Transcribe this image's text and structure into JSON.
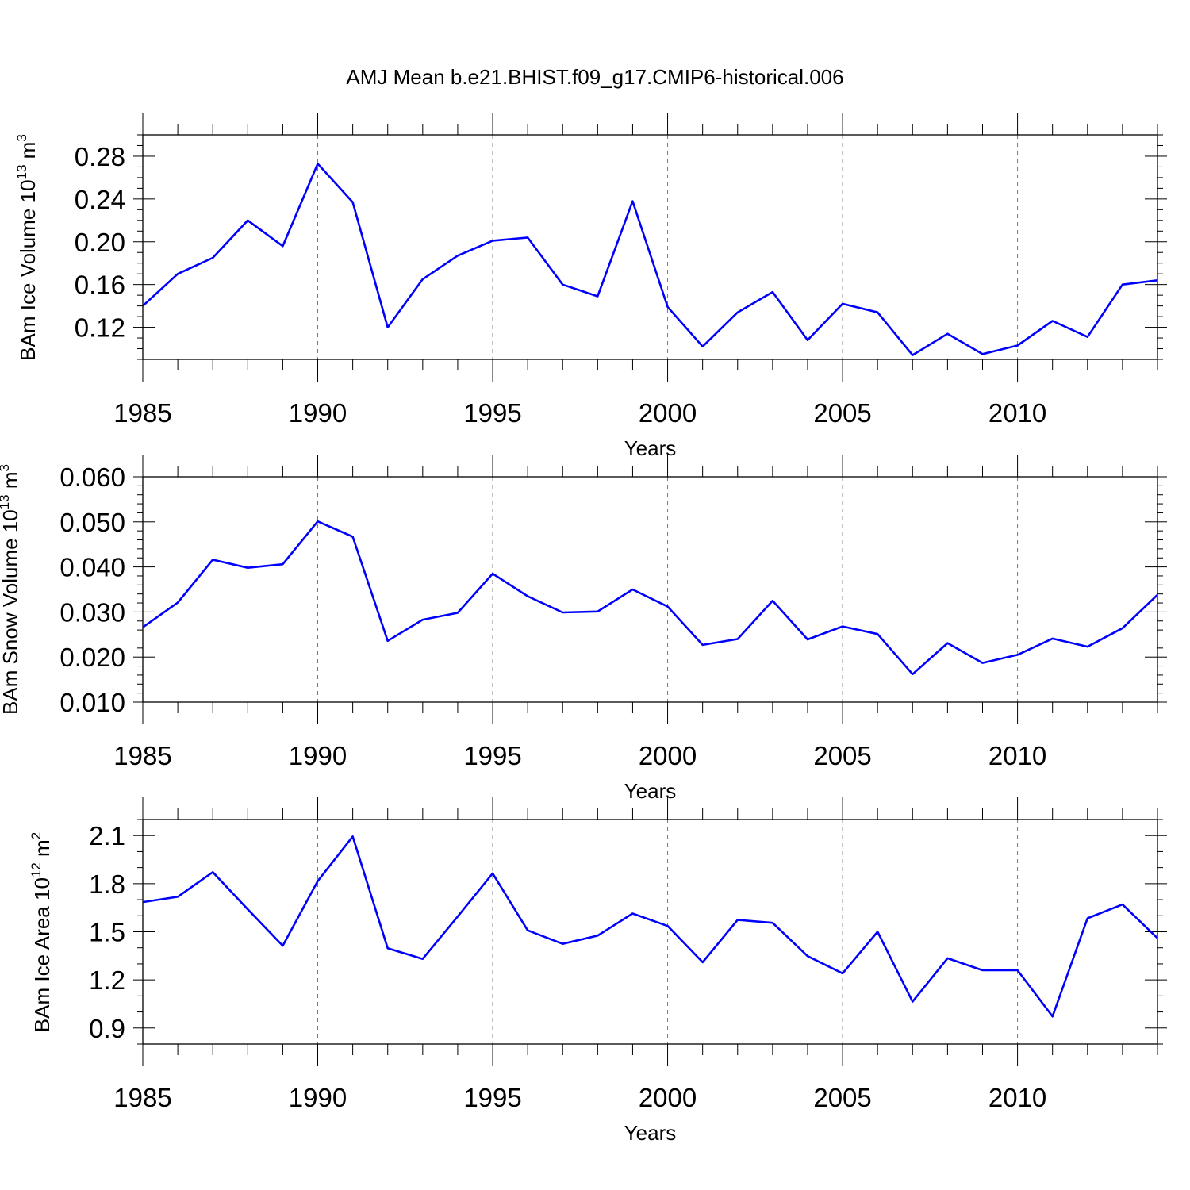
{
  "title": "AMJ Mean b.e21.BHIST.f09_g17.CMIP6-historical.006",
  "colors": {
    "line": "#0000ff",
    "axis": "#000000",
    "grid": "#777777"
  },
  "chart_data": [
    {
      "type": "line",
      "ylabel": {
        "main": "BAm Ice Volume 10",
        "exp": "13",
        "unit": " m",
        "unit_exp": "3"
      },
      "xlabel": "Years",
      "xlim": [
        1985,
        2014
      ],
      "ylim": [
        0.09,
        0.3
      ],
      "yticks": [
        0.12,
        0.16,
        0.2,
        0.24,
        0.28
      ],
      "ytick_labels": [
        "0.12",
        "0.16",
        "0.20",
        "0.24",
        "0.28"
      ],
      "yminor_step": 0.01,
      "xticks": [
        1985,
        1990,
        1995,
        2000,
        2005,
        2010
      ],
      "xtick_labels": [
        "1985",
        "1990",
        "1995",
        "2000",
        "2005",
        "2010"
      ],
      "grid": "dashed vertical at major x ticks",
      "x": [
        1985,
        1986,
        1987,
        1988,
        1989,
        1990,
        1991,
        1992,
        1993,
        1994,
        1995,
        1996,
        1997,
        1998,
        1999,
        2000,
        2001,
        2002,
        2003,
        2004,
        2005,
        2006,
        2007,
        2008,
        2009,
        2010,
        2011,
        2012,
        2013,
        2014
      ],
      "values": [
        0.14,
        0.17,
        0.185,
        0.22,
        0.196,
        0.273,
        0.237,
        0.12,
        0.165,
        0.187,
        0.201,
        0.204,
        0.16,
        0.149,
        0.238,
        0.139,
        0.102,
        0.134,
        0.153,
        0.108,
        0.142,
        0.134,
        0.094,
        0.114,
        0.095,
        0.103,
        0.126,
        0.111,
        0.16,
        0.164
      ]
    },
    {
      "type": "line",
      "ylabel": {
        "main": "BAm Snow Volume 10",
        "exp": "13",
        "unit": " m",
        "unit_exp": "3"
      },
      "xlabel": "Years",
      "xlim": [
        1985,
        2014
      ],
      "ylim": [
        0.01,
        0.06
      ],
      "yticks": [
        0.01,
        0.02,
        0.03,
        0.04,
        0.05,
        0.06
      ],
      "ytick_labels": [
        "0.010",
        "0.020",
        "0.030",
        "0.040",
        "0.050",
        "0.060"
      ],
      "yminor_step": 0.002,
      "xticks": [
        1985,
        1990,
        1995,
        2000,
        2005,
        2010
      ],
      "xtick_labels": [
        "1985",
        "1990",
        "1995",
        "2000",
        "2005",
        "2010"
      ],
      "grid": "dashed vertical at major x ticks",
      "x": [
        1985,
        1986,
        1987,
        1988,
        1989,
        1990,
        1991,
        1992,
        1993,
        1994,
        1995,
        1996,
        1997,
        1998,
        1999,
        2000,
        2001,
        2002,
        2003,
        2004,
        2005,
        2006,
        2007,
        2008,
        2009,
        2010,
        2011,
        2012,
        2013,
        2014
      ],
      "values": [
        0.0266,
        0.0321,
        0.0416,
        0.0398,
        0.0406,
        0.0501,
        0.0467,
        0.0236,
        0.0283,
        0.0298,
        0.0385,
        0.0335,
        0.0299,
        0.0301,
        0.035,
        0.0312,
        0.0227,
        0.024,
        0.0325,
        0.0239,
        0.0268,
        0.0251,
        0.0162,
        0.0231,
        0.0187,
        0.0205,
        0.0241,
        0.0223,
        0.0264,
        0.0338
      ]
    },
    {
      "type": "line",
      "ylabel": {
        "main": "BAm Ice Area 10",
        "exp": "12",
        "unit": " m",
        "unit_exp": "2"
      },
      "xlabel": "Years",
      "xlim": [
        1985,
        2014
      ],
      "ylim": [
        0.8,
        2.2
      ],
      "yticks": [
        0.9,
        1.2,
        1.5,
        1.8,
        2.1
      ],
      "ytick_labels": [
        "0.9",
        "1.2",
        "1.5",
        "1.8",
        "2.1"
      ],
      "yminor_step": 0.1,
      "xticks": [
        1985,
        1990,
        1995,
        2000,
        2005,
        2010
      ],
      "xtick_labels": [
        "1985",
        "1990",
        "1995",
        "2000",
        "2005",
        "2010"
      ],
      "grid": "dashed vertical at major x ticks",
      "x": [
        1985,
        1986,
        1987,
        1988,
        1989,
        1990,
        1991,
        1992,
        1993,
        1994,
        1995,
        1996,
        1997,
        1998,
        1999,
        2000,
        2001,
        2002,
        2003,
        2004,
        2005,
        2006,
        2007,
        2008,
        2009,
        2010,
        2011,
        2012,
        2013,
        2014
      ],
      "values": [
        1.685,
        1.718,
        1.872,
        1.64,
        1.413,
        1.816,
        2.094,
        1.397,
        1.331,
        1.595,
        1.864,
        1.509,
        1.425,
        1.476,
        1.614,
        1.536,
        1.31,
        1.574,
        1.556,
        1.348,
        1.241,
        1.5,
        1.064,
        1.335,
        1.26,
        1.26,
        0.972,
        1.584,
        1.67,
        1.46
      ]
    }
  ]
}
